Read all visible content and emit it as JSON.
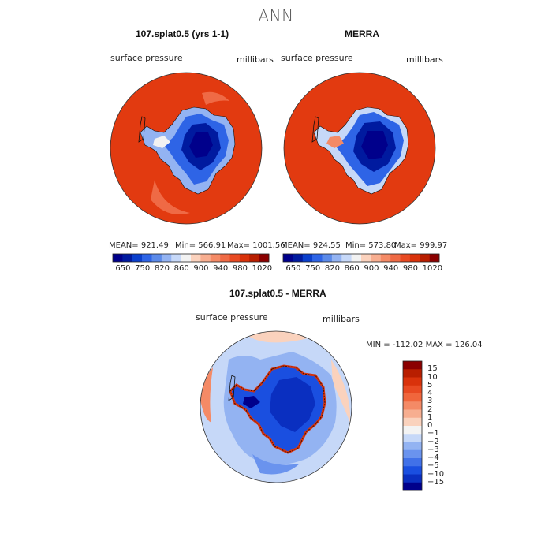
{
  "title": "ANN",
  "panels": [
    {
      "title": "107.splat0.5 (yrs 1-1)",
      "variable": "surface pressure",
      "units": "millibars",
      "mean": "MEAN= 921.49",
      "min": "Min= 566.91",
      "max": "Max= 1001.56"
    },
    {
      "title": "MERRA",
      "variable": "surface pressure",
      "units": "millibars",
      "mean": "MEAN= 924.55",
      "min": "Min= 573.80",
      "max": "Max= 999.97"
    }
  ],
  "colorbar_top": {
    "labels": [
      "650",
      "750",
      "820",
      "860",
      "900",
      "940",
      "980",
      "1020"
    ],
    "colors": [
      "#00008b",
      "#001a9f",
      "#0a3fcc",
      "#2e64e6",
      "#5b8ae9",
      "#93b3f2",
      "#c6d8f8",
      "#f2f2f2",
      "#fbd2bd",
      "#f8ae90",
      "#f48a66",
      "#ef6a45",
      "#e84a22",
      "#d9320b",
      "#b81e00",
      "#8b0000"
    ]
  },
  "diff": {
    "title": "107.splat0.5 - MERRA",
    "variable": "surface pressure",
    "units": "millibars",
    "minmax": "MIN = -112.02  MAX = 126.04",
    "colorbar_labels": [
      "15",
      "10",
      "5",
      "4",
      "3",
      "2",
      "1",
      "0",
      "−1",
      "−2",
      "−3",
      "−4",
      "−5",
      "−10",
      "−15"
    ],
    "colorbar_colors": [
      "#8b0000",
      "#b81e00",
      "#d9320b",
      "#e84a22",
      "#f0663c",
      "#f48a66",
      "#f7ae90",
      "#fad2bd",
      "#f3f3f3",
      "#c6d8f8",
      "#93b3f2",
      "#6a93ee",
      "#4171e8",
      "#1a4fe0",
      "#0a2fc0",
      "#00008b"
    ]
  }
}
